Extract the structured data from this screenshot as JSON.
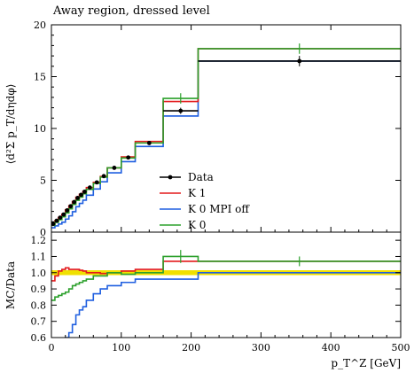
{
  "chart_data": {
    "type": "line",
    "title": "Away region, dressed level",
    "xlabel": "p_T^Z [GeV]",
    "ylabel_main": "⟨d²Σ p_T/dηdφ⟩",
    "ylabel_ratio": "MC/Data",
    "xlim": [
      0,
      500
    ],
    "ylim_main": [
      0,
      20
    ],
    "ylim_ratio": [
      0.6,
      1.25
    ],
    "x_ticks": [
      0,
      100,
      200,
      300,
      400,
      500
    ],
    "y_ticks_main": [
      0,
      5,
      10,
      15,
      20
    ],
    "y_ticks_ratio": [
      0.6,
      0.7,
      0.8,
      0.9,
      1.0,
      1.1,
      1.2
    ],
    "bin_edges": [
      0,
      5,
      10,
      15,
      20,
      25,
      30,
      35,
      40,
      45,
      50,
      60,
      70,
      80,
      100,
      120,
      160,
      210,
      500
    ],
    "legend_position": "center",
    "data_band": {
      "range": [
        0.985,
        1.015
      ],
      "color": "#f0e000"
    },
    "series": [
      {
        "name": "Data",
        "color": "#000000",
        "style": "points",
        "values": [
          0.8,
          1.1,
          1.4,
          1.7,
          2.1,
          2.5,
          2.9,
          3.3,
          3.6,
          3.9,
          4.3,
          4.8,
          5.4,
          6.2,
          7.2,
          8.6,
          11.7,
          16.5
        ],
        "errors": [
          0.1,
          0.1,
          0.1,
          0.1,
          0.1,
          0.1,
          0.1,
          0.1,
          0.1,
          0.1,
          0.1,
          0.1,
          0.1,
          0.1,
          0.15,
          0.2,
          0.3,
          0.5
        ],
        "ratio": [
          1,
          1,
          1,
          1,
          1,
          1,
          1,
          1,
          1,
          1,
          1,
          1,
          1,
          1,
          1,
          1,
          1,
          1
        ]
      },
      {
        "name": "K 1",
        "color": "#e31a1c",
        "style": "line",
        "values": [
          0.76,
          1.08,
          1.42,
          1.74,
          2.16,
          2.55,
          2.96,
          3.37,
          3.65,
          3.94,
          4.3,
          4.8,
          5.37,
          6.2,
          7.26,
          8.75,
          12.6,
          17.7
        ],
        "ratio": [
          0.95,
          0.98,
          1.01,
          1.02,
          1.03,
          1.02,
          1.02,
          1.02,
          1.015,
          1.01,
          1.0,
          1.0,
          0.995,
          1.0,
          1.01,
          1.02,
          1.07,
          1.07
        ]
      },
      {
        "name": "K 0 MPI off",
        "color": "#1f5fe0",
        "style": "line",
        "values": [
          0.42,
          0.6,
          0.78,
          0.96,
          1.26,
          1.57,
          1.97,
          2.45,
          2.77,
          3.08,
          3.56,
          4.16,
          4.86,
          5.72,
          6.8,
          8.26,
          11.2,
          16.5
        ],
        "ratio": [
          0.53,
          0.55,
          0.56,
          0.58,
          0.6,
          0.63,
          0.68,
          0.74,
          0.77,
          0.79,
          0.83,
          0.87,
          0.9,
          0.92,
          0.94,
          0.96,
          0.96,
          1.0
        ]
      },
      {
        "name": "K 0",
        "color": "#2ca02c",
        "style": "line",
        "values": [
          0.66,
          0.94,
          1.2,
          1.48,
          1.85,
          2.25,
          2.67,
          3.07,
          3.38,
          3.7,
          4.13,
          4.7,
          5.3,
          6.2,
          7.15,
          8.6,
          12.9,
          17.7
        ],
        "ratio": [
          0.83,
          0.85,
          0.86,
          0.87,
          0.88,
          0.9,
          0.92,
          0.93,
          0.94,
          0.95,
          0.96,
          0.98,
          0.98,
          1.0,
          0.99,
          1.0,
          1.1,
          1.07
        ],
        "highlight_errors": [
          {
            "bin": 16,
            "main": 0.5,
            "ratio": 0.04
          },
          {
            "bin": 17,
            "main": 0.5,
            "ratio": 0.03
          }
        ]
      }
    ]
  }
}
